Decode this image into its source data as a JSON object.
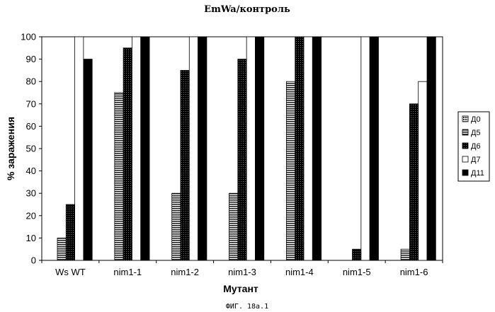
{
  "chart_data": {
    "type": "bar",
    "title": "EmWa/контроль",
    "xlabel": "Мутант",
    "ylabel": "% заражения",
    "ylim": [
      0,
      100
    ],
    "yticks": [
      0,
      10,
      20,
      30,
      40,
      50,
      60,
      70,
      80,
      90,
      100
    ],
    "categories": [
      "Ws WT",
      "nim1-1",
      "nim1-2",
      "nim1-3",
      "nim1-4",
      "nim1-5",
      "nim1-6"
    ],
    "series": [
      {
        "name": "Д0",
        "values": [
          0,
          0,
          0,
          0,
          0,
          0,
          0
        ]
      },
      {
        "name": "Д5",
        "values": [
          10,
          75,
          30,
          30,
          80,
          0,
          5
        ]
      },
      {
        "name": "Д6",
        "values": [
          25,
          95,
          85,
          90,
          100,
          5,
          70
        ]
      },
      {
        "name": "Д7",
        "values": [
          100,
          100,
          100,
          100,
          100,
          100,
          80
        ]
      },
      {
        "name": "Д11",
        "values": [
          90,
          100,
          100,
          100,
          100,
          100,
          100
        ]
      }
    ],
    "grid": false,
    "legend_position": "right"
  },
  "caption": "ФИГ. 18а.1",
  "colors": {
    "Д0": "#555555",
    "Д5": "#777777",
    "Д6": "#222222",
    "Д7": "#ffffff",
    "Д11": "#000000"
  }
}
